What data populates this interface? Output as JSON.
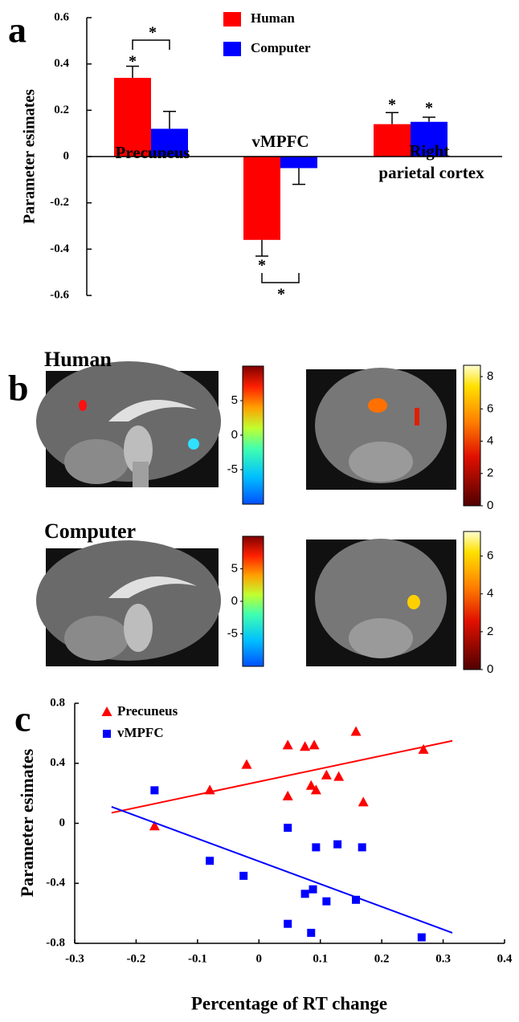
{
  "chart_data": [
    {
      "type": "bar",
      "panel": "a",
      "ylabel": "Parameter esimates",
      "categories": [
        "Precuneus",
        "vMPFC",
        "Right parietal cortex"
      ],
      "series": [
        {
          "name": "Human",
          "color": "#ff0000",
          "values": [
            0.34,
            -0.36,
            0.14
          ],
          "errors": [
            0.05,
            0.07,
            0.05
          ]
        },
        {
          "name": "Computer",
          "color": "#0000ff",
          "values": [
            0.12,
            -0.05,
            0.15
          ],
          "errors": [
            0.075,
            0.07,
            0.02
          ]
        }
      ],
      "ylim": [
        -0.6,
        0.6
      ],
      "yticks": [
        -0.6,
        -0.4,
        -0.2,
        0,
        0.2,
        0.4,
        0.6
      ],
      "significance": [
        "*",
        "*",
        "*",
        "*",
        "*",
        "*"
      ],
      "legend": "upper center"
    },
    {
      "type": "scatter",
      "panel": "c",
      "xlabel": "Percentage of RT change",
      "ylabel": "Parameter esimates",
      "series": [
        {
          "name": "Precuneus",
          "color": "#ff0000",
          "marker": "triangle",
          "x": [
            -0.17,
            -0.08,
            -0.02,
            0.047,
            0.075,
            0.09,
            0.047,
            0.085,
            0.093,
            0.11,
            0.13,
            0.158,
            0.17,
            0.268
          ],
          "y": [
            -0.02,
            0.22,
            0.39,
            0.52,
            0.51,
            0.52,
            0.18,
            0.25,
            0.22,
            0.32,
            0.31,
            0.61,
            0.14,
            0.49
          ],
          "fit_x": [
            -0.24,
            0.315
          ],
          "fit_y": [
            0.07,
            0.55
          ]
        },
        {
          "name": "vMPFC",
          "color": "#0000ff",
          "marker": "square",
          "x": [
            -0.17,
            -0.08,
            -0.025,
            0.047,
            0.093,
            0.128,
            0.168,
            0.075,
            0.088,
            0.11,
            0.158,
            0.047,
            0.085,
            0.265
          ],
          "y": [
            0.22,
            -0.25,
            -0.35,
            -0.03,
            -0.16,
            -0.14,
            -0.16,
            -0.47,
            -0.44,
            -0.52,
            -0.51,
            -0.67,
            -0.73,
            -0.76
          ],
          "fit_x": [
            -0.24,
            0.315
          ],
          "fit_y": [
            0.11,
            -0.73
          ]
        }
      ],
      "xlim": [
        -0.3,
        0.4
      ],
      "xticks": [
        -0.3,
        -0.2,
        -0.1,
        0,
        0.1,
        0.2,
        0.3,
        0.4
      ],
      "ylim": [
        -0.8,
        0.8
      ],
      "yticks": [
        -0.8,
        -0.4,
        0,
        0.4,
        0.8
      ],
      "legend": "upper left"
    }
  ],
  "panel_b": {
    "label": "b",
    "rows": [
      {
        "title": "Human",
        "colorbars": [
          {
            "colormap": "jet",
            "clim": [
              -10,
              10
            ],
            "ticks": [
              -5,
              0,
              5
            ]
          },
          {
            "colormap": "hot",
            "clim": [
              0,
              8.7
            ],
            "ticks": [
              0,
              2,
              4,
              6,
              8
            ]
          }
        ]
      },
      {
        "title": "Computer",
        "colorbars": [
          {
            "colormap": "jet",
            "clim": [
              -10,
              10
            ],
            "ticks": [
              -5,
              0,
              5
            ]
          },
          {
            "colormap": "hot",
            "clim": [
              0,
              7.3
            ],
            "ticks": [
              0,
              2,
              4,
              6
            ]
          }
        ]
      }
    ]
  }
}
